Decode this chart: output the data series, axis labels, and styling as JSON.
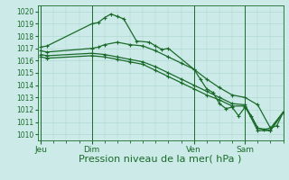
{
  "bg_color": "#cceae8",
  "grid_color": "#aad4cc",
  "line_color": "#1a6b2a",
  "xlabel": "Pression niveau de la mer( hPa )",
  "xlabel_fontsize": 8,
  "ylim": [
    1009.5,
    1020.5
  ],
  "yticks": [
    1010,
    1011,
    1012,
    1013,
    1014,
    1015,
    1016,
    1017,
    1018,
    1019,
    1020
  ],
  "ytick_fontsize": 5.5,
  "xtick_labels": [
    "Jeu",
    "Dim",
    "Ven",
    "Sam"
  ],
  "xtick_positions": [
    0,
    16,
    48,
    64
  ],
  "xlim": [
    -1,
    76
  ],
  "vlines": [
    0,
    16,
    48,
    64
  ],
  "series": [
    {
      "x": [
        0,
        2,
        16,
        18,
        20,
        22,
        24,
        26,
        30,
        34,
        36,
        38,
        40,
        48,
        50,
        52,
        54,
        56,
        58,
        60,
        62,
        64,
        66,
        68,
        70,
        72,
        74,
        76
      ],
      "y": [
        1017.1,
        1017.2,
        1019.0,
        1019.1,
        1019.5,
        1019.8,
        1019.6,
        1019.4,
        1017.6,
        1017.5,
        1017.2,
        1016.9,
        1017.0,
        1015.3,
        1014.5,
        1013.7,
        1013.4,
        1012.5,
        1012.1,
        1012.2,
        1011.5,
        1012.2,
        1011.5,
        1010.5,
        1010.4,
        1010.5,
        1010.7,
        1011.8
      ]
    },
    {
      "x": [
        0,
        2,
        16,
        18,
        20,
        24,
        28,
        32,
        36,
        40,
        44,
        48,
        52,
        56,
        60,
        64,
        68,
        72,
        76
      ],
      "y": [
        1016.8,
        1016.7,
        1017.0,
        1017.1,
        1017.3,
        1017.5,
        1017.3,
        1017.2,
        1016.8,
        1016.3,
        1015.8,
        1015.3,
        1014.5,
        1013.8,
        1013.2,
        1013.0,
        1012.4,
        1010.5,
        1011.8
      ]
    },
    {
      "x": [
        0,
        2,
        16,
        20,
        24,
        28,
        32,
        36,
        40,
        44,
        48,
        52,
        56,
        60,
        64,
        68,
        72,
        76
      ],
      "y": [
        1016.5,
        1016.4,
        1016.6,
        1016.5,
        1016.3,
        1016.1,
        1015.9,
        1015.5,
        1015.0,
        1014.5,
        1014.0,
        1013.5,
        1013.0,
        1012.5,
        1012.4,
        1010.5,
        1010.3,
        1011.8
      ]
    },
    {
      "x": [
        0,
        2,
        16,
        20,
        24,
        28,
        32,
        36,
        40,
        44,
        48,
        52,
        56,
        60,
        64,
        68,
        72,
        76
      ],
      "y": [
        1016.3,
        1016.2,
        1016.4,
        1016.3,
        1016.1,
        1015.9,
        1015.7,
        1015.2,
        1014.7,
        1014.2,
        1013.7,
        1013.2,
        1012.8,
        1012.3,
        1012.3,
        1010.3,
        1010.3,
        1011.8
      ]
    }
  ]
}
